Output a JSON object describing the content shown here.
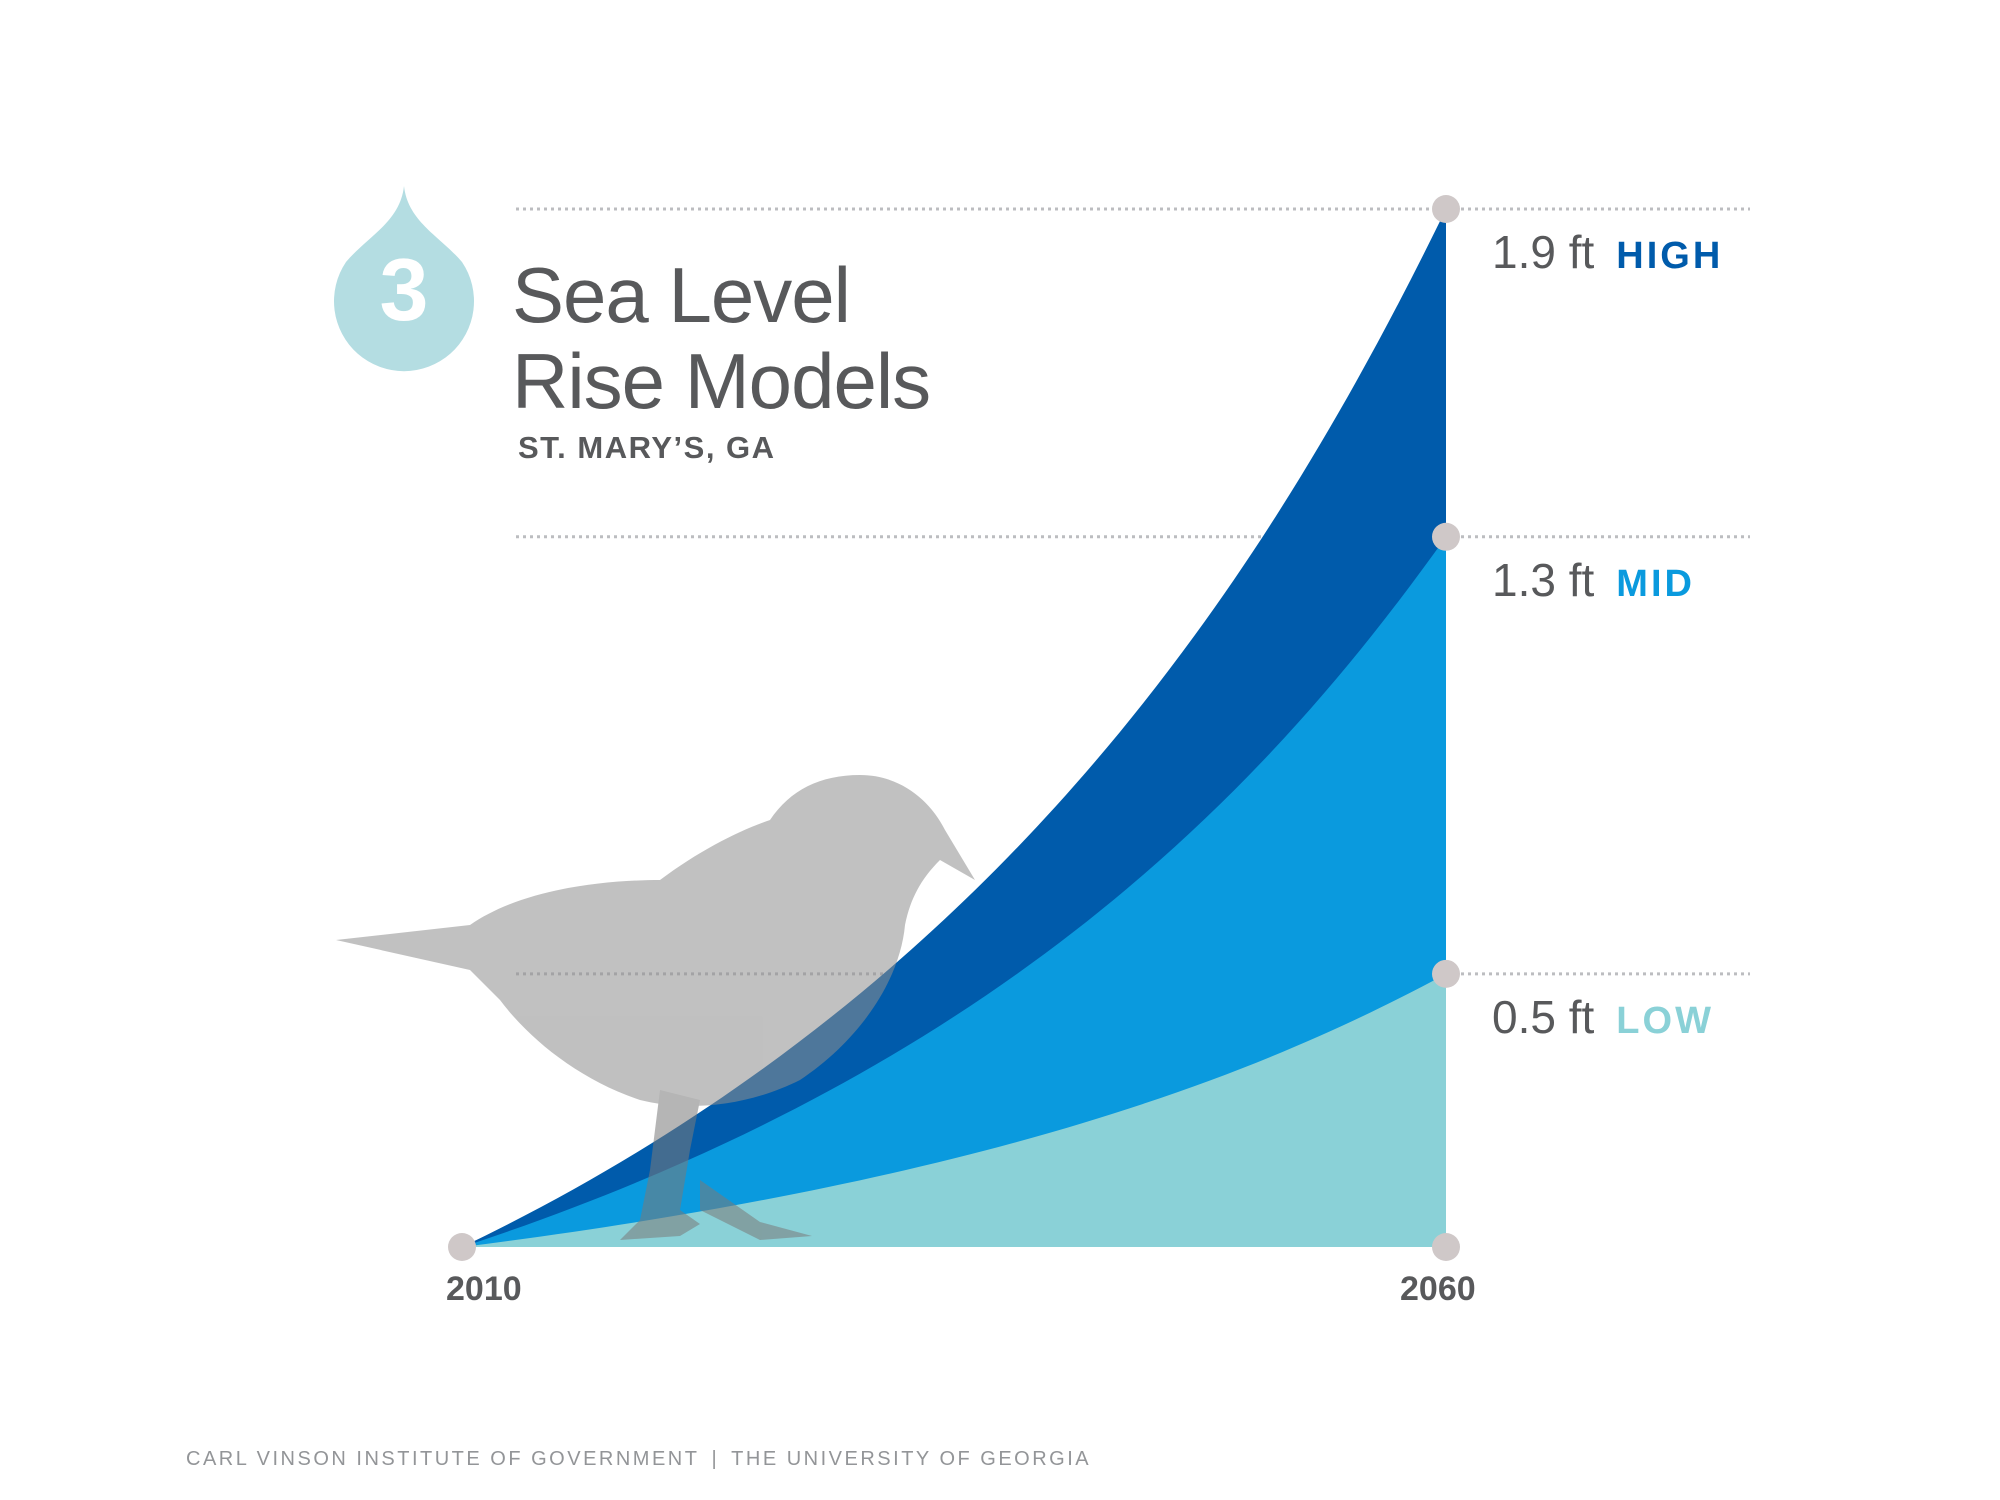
{
  "badge": {
    "number": "3",
    "color": "#b4dde2"
  },
  "title": {
    "line1": "Sea Level",
    "line2": "Rise Models"
  },
  "subtitle": "ST. MARY’S, GA",
  "chart_data": {
    "type": "area",
    "x_range": [
      2010,
      2060
    ],
    "x_ticks": [
      "2010",
      "2060"
    ],
    "y_unit": "ft",
    "series": [
      {
        "name": "HIGH",
        "end_value": 1.9,
        "end_label": "1.9 ft",
        "color": "#005bab"
      },
      {
        "name": "MID",
        "end_value": 1.3,
        "end_label": "1.3 ft",
        "color": "#0a9ade"
      },
      {
        "name": "LOW",
        "end_value": 0.5,
        "end_label": "0.5 ft",
        "color": "#8ad1d7"
      }
    ],
    "start_value": 0,
    "gridlines": "dotted, at each end value",
    "marker_color": "#cfc8c8"
  },
  "footer": {
    "left": "CARL VINSON INSTITUTE OF GOVERNMENT",
    "separator": "|",
    "right": "THE UNIVERSITY OF GEORGIA"
  }
}
